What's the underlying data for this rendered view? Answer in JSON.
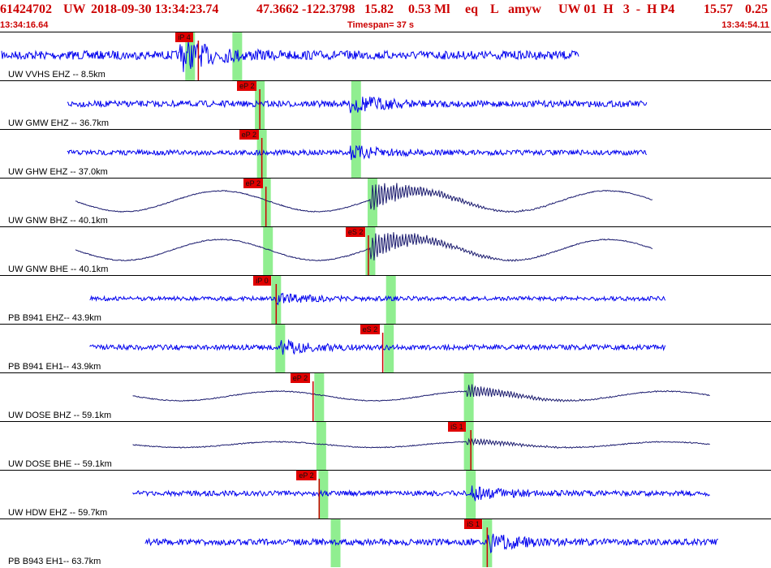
{
  "header": {
    "event_id": "61424702",
    "network": "UW",
    "datetime": "2018-09-30 13:34:23.74",
    "lat": "47.3662",
    "lon": "-122.3798",
    "depth": "15.82",
    "magnitude": "0.53 Ml",
    "etype": "eq",
    "gtype": "L",
    "source": "amyw",
    "station_info": "UW 01  H   3  -  H P4",
    "val1": "15.57",
    "val2": "0.25"
  },
  "timebar": {
    "start_time": "13:34:16.64",
    "timespan": "Timespan=  37 s",
    "end_time": "13:34:54.11"
  },
  "colors": {
    "header_text": "#cc0000",
    "trace_blue": "#0000ee",
    "trace_dark": "#1a1a6e",
    "pick_flag": "#e00000",
    "window_green": "#90ee90",
    "pick_line": "#cc0000"
  },
  "channels": [
    {
      "label": "UW VVHS EHZ -- 8.5km",
      "style": "blue",
      "wave": "noise",
      "start_s": 0.0,
      "end_s": 28.2,
      "arrival_s": 8.7,
      "amp": 0.42,
      "windows_s": [
        9.2,
        11.5
      ],
      "picks": [
        {
          "text": "iP 4",
          "t_s": 9.6
        }
      ]
    },
    {
      "label": "UW GMW EHZ -- 36.7km",
      "style": "blue",
      "wave": "burst",
      "start_s": 3.2,
      "end_s": 31.5,
      "arrival_s": 17.0,
      "amp": 0.25,
      "windows_s": [
        12.6,
        17.3
      ],
      "picks": [
        {
          "text": "eP 2",
          "t_s": 12.6
        }
      ]
    },
    {
      "label": "UW GHW EHZ -- 37.0km",
      "style": "blue",
      "wave": "burst",
      "start_s": 3.2,
      "end_s": 31.5,
      "arrival_s": 17.0,
      "amp": 0.18,
      "windows_s": [
        12.7,
        17.3
      ],
      "picks": [
        {
          "text": "eP 2",
          "t_s": 12.7
        }
      ]
    },
    {
      "label": "UW GNW BHZ -- 40.1km",
      "style": "dark",
      "wave": "sine",
      "start_s": 3.6,
      "end_s": 31.8,
      "arrival_s": 18.0,
      "amp": 0.55,
      "windows_s": [
        12.9,
        18.1
      ],
      "picks": [
        {
          "text": "eP 2",
          "t_s": 12.9
        }
      ]
    },
    {
      "label": "UW GNW BHE -- 40.1km",
      "style": "dark",
      "wave": "sine",
      "start_s": 3.6,
      "end_s": 31.8,
      "arrival_s": 18.0,
      "amp": 0.55,
      "windows_s": [
        13.0,
        18.0
      ],
      "picks": [
        {
          "text": "eS 2",
          "t_s": 17.9
        }
      ]
    },
    {
      "label": "PB B941 EHZ-- 43.9km",
      "style": "blue",
      "wave": "burst",
      "start_s": 4.3,
      "end_s": 32.4,
      "arrival_s": 13.4,
      "amp": 0.12,
      "windows_s": [
        13.4,
        19.0
      ],
      "picks": [
        {
          "text": "iP 0",
          "t_s": 13.4
        }
      ]
    },
    {
      "label": "PB B941 EH1-- 43.9km",
      "style": "blue",
      "wave": "burst",
      "start_s": 4.3,
      "end_s": 32.4,
      "arrival_s": 13.6,
      "amp": 0.18,
      "windows_s": [
        13.6,
        18.9
      ],
      "picks": [
        {
          "text": "eS 2",
          "t_s": 18.6
        }
      ]
    },
    {
      "label": "UW DOSE BHZ -- 59.1km",
      "style": "dark",
      "wave": "sine",
      "start_s": 6.4,
      "end_s": 34.6,
      "arrival_s": 22.7,
      "amp": 0.25,
      "windows_s": [
        15.5,
        22.8
      ],
      "picks": [
        {
          "text": "eP 2",
          "t_s": 15.2
        }
      ]
    },
    {
      "label": "UW DOSE BHE -- 59.1km",
      "style": "dark",
      "wave": "sine",
      "start_s": 6.4,
      "end_s": 34.6,
      "arrival_s": 22.7,
      "amp": 0.15,
      "windows_s": [
        15.6,
        22.8
      ],
      "picks": [
        {
          "text": "iS 1",
          "t_s": 22.9
        }
      ]
    },
    {
      "label": "UW HDW EHZ -- 59.7km",
      "style": "blue",
      "wave": "burst",
      "start_s": 6.4,
      "end_s": 34.6,
      "arrival_s": 22.9,
      "amp": 0.18,
      "windows_s": [
        15.7,
        22.9
      ],
      "picks": [
        {
          "text": "eP 2",
          "t_s": 15.5
        }
      ]
    },
    {
      "label": "PB B943 EH1-- 63.7km",
      "style": "blue",
      "wave": "burst",
      "start_s": 7.0,
      "end_s": 35.0,
      "arrival_s": 23.7,
      "amp": 0.25,
      "windows_s": [
        16.3,
        23.7
      ],
      "picks": [
        {
          "text": "iS 1",
          "t_s": 23.7
        }
      ]
    }
  ]
}
